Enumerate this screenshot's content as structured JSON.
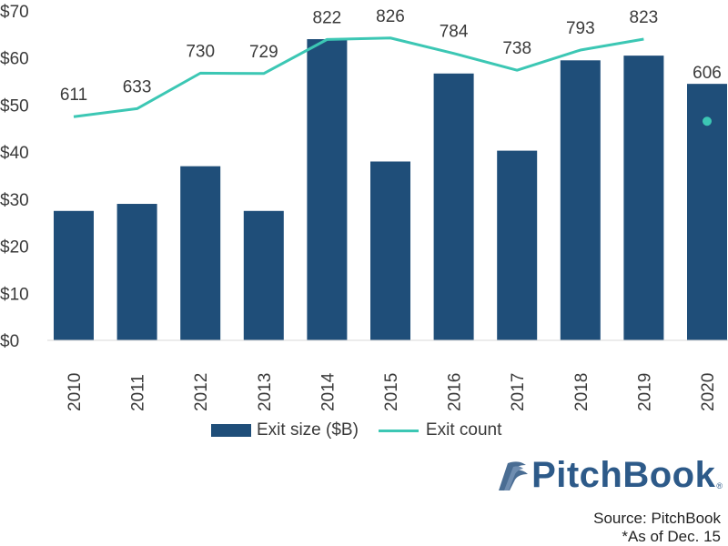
{
  "chart_data": {
    "type": "bar",
    "categories": [
      "2010",
      "2011",
      "2012",
      "2013",
      "2014",
      "2015",
      "2016",
      "2017",
      "2018",
      "2019",
      "2020"
    ],
    "series": [
      {
        "name": "Exit size ($B)",
        "type": "bar",
        "color": "#1f4e79",
        "values": [
          27.5,
          29,
          37,
          27.5,
          64,
          38,
          56.7,
          40.3,
          59.5,
          60.5,
          54.5
        ]
      },
      {
        "name": "Exit count",
        "type": "line",
        "color": "#3cc7b4",
        "values": [
          611,
          633,
          730,
          729,
          822,
          826,
          784,
          738,
          793,
          823,
          606
        ],
        "point_only_last": true
      }
    ],
    "data_labels": [
      "611",
      "633",
      "730",
      "729",
      "822",
      "826",
      "784",
      "738",
      "793",
      "823",
      "606"
    ],
    "y_ticks": [
      "$0",
      "$10",
      "$20",
      "$30",
      "$40",
      "$50",
      "$60",
      "$70"
    ],
    "ylim": [
      0,
      70
    ],
    "secondary_ylim": [
      0,
      900
    ],
    "legend_position": "bottom",
    "grid": false
  },
  "branding": {
    "logo_text": "PitchBook",
    "logo_mark": "®"
  },
  "source": {
    "line1": "Source: PitchBook",
    "line2": "*As of Dec. 15"
  }
}
